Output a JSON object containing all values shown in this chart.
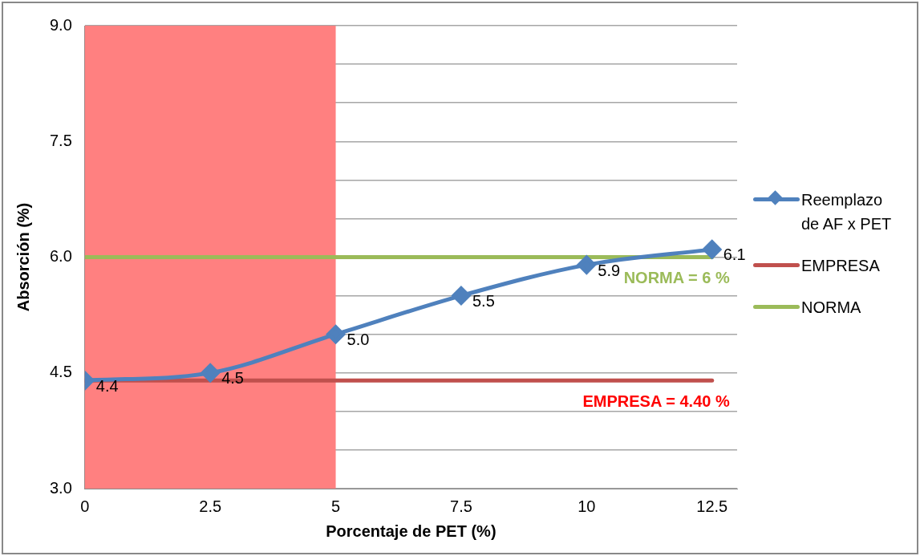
{
  "chart_data": {
    "type": "line",
    "xlabel": "Porcentaje de PET (%)",
    "ylabel": "Absorción (%)",
    "x": [
      0,
      2.5,
      5,
      7.5,
      10,
      12.5
    ],
    "series": [
      {
        "name": "Reemplazo de AF x PET",
        "color": "#4f81bd",
        "values": [
          4.4,
          4.5,
          5.0,
          5.5,
          5.9,
          6.1
        ],
        "value_labels": [
          "4.4",
          "4.5",
          "5.0",
          "5.5",
          "5.9",
          "6.1"
        ],
        "marker": "diamond"
      },
      {
        "name": "EMPRESA",
        "color": "#c0504d",
        "values": [
          4.4,
          4.4,
          4.4,
          4.4,
          4.4,
          4.4
        ],
        "marker": "none"
      },
      {
        "name": "NORMA",
        "color": "#9bbb59",
        "values": [
          6,
          6,
          6,
          6,
          6,
          6
        ],
        "marker": "none"
      }
    ],
    "xlim": [
      0,
      13
    ],
    "xticks": [
      0,
      2.5,
      5,
      7.5,
      10,
      12.5
    ],
    "ylim": [
      3,
      9
    ],
    "yticks": [
      {
        "value": 3,
        "label": "3.0"
      },
      {
        "value": 3.5,
        "label": null
      },
      {
        "value": 4,
        "label": null
      },
      {
        "value": 4.5,
        "label": "4.5"
      },
      {
        "value": 5,
        "label": null
      },
      {
        "value": 5.5,
        "label": null
      },
      {
        "value": 6,
        "label": "6.0"
      },
      {
        "value": 6.5,
        "label": null
      },
      {
        "value": 7,
        "label": null
      },
      {
        "value": 7.5,
        "label": "7.5"
      },
      {
        "value": 8,
        "label": null
      },
      {
        "value": 8.5,
        "label": null
      },
      {
        "value": 9,
        "label": "9.0"
      }
    ],
    "grid": "y",
    "legend": "right",
    "bands": [
      {
        "axis": "x",
        "from": 0,
        "to": 5,
        "color": "#ff8080"
      }
    ],
    "annotations": [
      {
        "text": "NORMA = 6 %",
        "x": 12.5,
        "y": 6
      },
      {
        "text": "EMPRESA = 4.40 %",
        "x": 12.5,
        "y": 4.4
      }
    ]
  }
}
